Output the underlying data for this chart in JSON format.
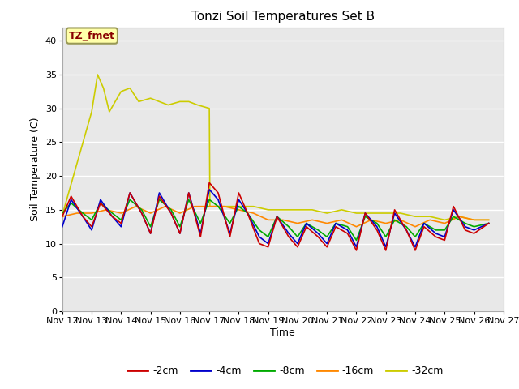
{
  "title": "Tonzi Soil Temperatures Set B",
  "xlabel": "Time",
  "ylabel": "Soil Temperature (C)",
  "ylim": [
    0,
    42
  ],
  "yticks": [
    0,
    5,
    10,
    15,
    20,
    25,
    30,
    35,
    40
  ],
  "xtick_labels": [
    "Nov 12",
    "Nov 13",
    "Nov 14",
    "Nov 15",
    "Nov 16",
    "Nov 17",
    "Nov 18",
    "Nov 19",
    "Nov 20",
    "Nov 21",
    "Nov 22",
    "Nov 23",
    "Nov 24",
    "Nov 25",
    "Nov 26",
    "Nov 27"
  ],
  "legend_labels": [
    "-2cm",
    "-4cm",
    "-8cm",
    "-16cm",
    "-32cm"
  ],
  "legend_colors": [
    "#cc0000",
    "#0000cc",
    "#00aa00",
    "#ff8800",
    "#cccc00"
  ],
  "annotation_text": "TZ_fmet",
  "annotation_bg": "#ffffaa",
  "annotation_border": "#999955",
  "annotation_fg": "#880000",
  "plot_bg_color": "#e8e8e8",
  "fig_bg_color": "#ffffff",
  "grid_color": "#ffffff",
  "series": {
    "d2cm": {
      "color": "#cc0000",
      "points": [
        [
          12.0,
          14.0
        ],
        [
          12.3,
          17.0
        ],
        [
          12.7,
          14.0
        ],
        [
          13.0,
          12.5
        ],
        [
          13.3,
          16.0
        ],
        [
          13.7,
          14.0
        ],
        [
          14.0,
          13.0
        ],
        [
          14.3,
          17.5
        ],
        [
          14.7,
          14.5
        ],
        [
          15.0,
          11.5
        ],
        [
          15.3,
          17.0
        ],
        [
          15.7,
          14.5
        ],
        [
          16.0,
          11.5
        ],
        [
          16.3,
          17.5
        ],
        [
          16.7,
          11.0
        ],
        [
          17.0,
          19.0
        ],
        [
          17.3,
          17.5
        ],
        [
          17.7,
          11.0
        ],
        [
          18.0,
          17.5
        ],
        [
          18.3,
          14.5
        ],
        [
          18.7,
          10.0
        ],
        [
          19.0,
          9.5
        ],
        [
          19.3,
          14.0
        ],
        [
          19.7,
          11.0
        ],
        [
          20.0,
          9.5
        ],
        [
          20.3,
          12.5
        ],
        [
          20.7,
          11.0
        ],
        [
          21.0,
          9.5
        ],
        [
          21.3,
          12.5
        ],
        [
          21.7,
          11.5
        ],
        [
          22.0,
          9.0
        ],
        [
          22.3,
          14.5
        ],
        [
          22.7,
          12.0
        ],
        [
          23.0,
          9.0
        ],
        [
          23.3,
          15.0
        ],
        [
          23.7,
          12.0
        ],
        [
          24.0,
          9.0
        ],
        [
          24.3,
          12.5
        ],
        [
          24.7,
          11.0
        ],
        [
          25.0,
          10.5
        ],
        [
          25.3,
          15.5
        ],
        [
          25.7,
          12.0
        ],
        [
          26.0,
          11.5
        ],
        [
          26.5,
          13.0
        ]
      ]
    },
    "d4cm": {
      "color": "#0000cc",
      "points": [
        [
          12.0,
          12.5
        ],
        [
          12.3,
          16.5
        ],
        [
          12.7,
          14.0
        ],
        [
          13.0,
          12.0
        ],
        [
          13.3,
          16.5
        ],
        [
          13.7,
          14.0
        ],
        [
          14.0,
          12.5
        ],
        [
          14.3,
          17.5
        ],
        [
          14.7,
          14.5
        ],
        [
          15.0,
          11.5
        ],
        [
          15.3,
          17.5
        ],
        [
          15.7,
          14.5
        ],
        [
          16.0,
          11.5
        ],
        [
          16.3,
          17.5
        ],
        [
          16.7,
          11.5
        ],
        [
          17.0,
          18.0
        ],
        [
          17.3,
          16.5
        ],
        [
          17.7,
          11.5
        ],
        [
          18.0,
          16.5
        ],
        [
          18.3,
          14.5
        ],
        [
          18.7,
          11.0
        ],
        [
          19.0,
          10.0
        ],
        [
          19.3,
          14.0
        ],
        [
          19.7,
          11.5
        ],
        [
          20.0,
          10.0
        ],
        [
          20.3,
          13.0
        ],
        [
          20.7,
          11.5
        ],
        [
          21.0,
          10.0
        ],
        [
          21.3,
          13.0
        ],
        [
          21.7,
          12.0
        ],
        [
          22.0,
          9.5
        ],
        [
          22.3,
          14.5
        ],
        [
          22.7,
          12.5
        ],
        [
          23.0,
          9.5
        ],
        [
          23.3,
          14.5
        ],
        [
          23.7,
          12.0
        ],
        [
          24.0,
          9.5
        ],
        [
          24.3,
          13.0
        ],
        [
          24.7,
          11.5
        ],
        [
          25.0,
          11.0
        ],
        [
          25.3,
          15.0
        ],
        [
          25.7,
          12.5
        ],
        [
          26.0,
          12.0
        ],
        [
          26.5,
          13.0
        ]
      ]
    },
    "d8cm": {
      "color": "#00aa00",
      "points": [
        [
          12.0,
          14.5
        ],
        [
          12.3,
          16.0
        ],
        [
          12.7,
          14.5
        ],
        [
          13.0,
          13.5
        ],
        [
          13.3,
          16.0
        ],
        [
          13.7,
          14.5
        ],
        [
          14.0,
          13.5
        ],
        [
          14.3,
          16.5
        ],
        [
          14.7,
          15.0
        ],
        [
          15.0,
          12.5
        ],
        [
          15.3,
          16.5
        ],
        [
          15.7,
          15.0
        ],
        [
          16.0,
          12.5
        ],
        [
          16.3,
          16.5
        ],
        [
          16.7,
          13.0
        ],
        [
          17.0,
          16.5
        ],
        [
          17.3,
          15.5
        ],
        [
          17.7,
          13.0
        ],
        [
          18.0,
          15.5
        ],
        [
          18.3,
          14.5
        ],
        [
          18.7,
          12.0
        ],
        [
          19.0,
          11.0
        ],
        [
          19.3,
          14.0
        ],
        [
          19.7,
          12.5
        ],
        [
          20.0,
          11.0
        ],
        [
          20.3,
          13.0
        ],
        [
          20.7,
          12.0
        ],
        [
          21.0,
          11.0
        ],
        [
          21.3,
          13.0
        ],
        [
          21.7,
          12.5
        ],
        [
          22.0,
          10.5
        ],
        [
          22.3,
          14.0
        ],
        [
          22.7,
          13.0
        ],
        [
          23.0,
          11.0
        ],
        [
          23.3,
          13.5
        ],
        [
          23.7,
          12.5
        ],
        [
          24.0,
          11.0
        ],
        [
          24.3,
          13.0
        ],
        [
          24.7,
          12.0
        ],
        [
          25.0,
          12.0
        ],
        [
          25.3,
          14.0
        ],
        [
          25.7,
          13.0
        ],
        [
          26.0,
          12.5
        ],
        [
          26.5,
          13.0
        ]
      ]
    },
    "d16cm": {
      "color": "#ff8800",
      "points": [
        [
          12.0,
          14.0
        ],
        [
          12.5,
          14.5
        ],
        [
          13.0,
          14.5
        ],
        [
          13.5,
          15.0
        ],
        [
          14.0,
          14.5
        ],
        [
          14.5,
          15.5
        ],
        [
          15.0,
          14.5
        ],
        [
          15.5,
          15.5
        ],
        [
          16.0,
          14.5
        ],
        [
          16.5,
          15.5
        ],
        [
          17.0,
          15.5
        ],
        [
          17.5,
          15.5
        ],
        [
          18.0,
          15.0
        ],
        [
          18.5,
          14.5
        ],
        [
          19.0,
          13.5
        ],
        [
          19.5,
          13.5
        ],
        [
          20.0,
          13.0
        ],
        [
          20.5,
          13.5
        ],
        [
          21.0,
          13.0
        ],
        [
          21.5,
          13.5
        ],
        [
          22.0,
          12.5
        ],
        [
          22.5,
          13.5
        ],
        [
          23.0,
          13.0
        ],
        [
          23.5,
          13.5
        ],
        [
          24.0,
          12.5
        ],
        [
          24.5,
          13.5
        ],
        [
          25.0,
          13.0
        ],
        [
          25.5,
          14.0
        ],
        [
          26.0,
          13.5
        ],
        [
          26.5,
          13.5
        ]
      ]
    },
    "d32cm": {
      "color": "#cccc00",
      "points": [
        [
          12.0,
          14.2
        ],
        [
          13.0,
          29.5
        ],
        [
          13.2,
          35.0
        ],
        [
          13.4,
          33.0
        ],
        [
          13.6,
          29.5
        ],
        [
          14.0,
          32.5
        ],
        [
          14.3,
          33.0
        ],
        [
          14.6,
          31.0
        ],
        [
          15.0,
          31.5
        ],
        [
          15.3,
          31.0
        ],
        [
          15.6,
          30.5
        ],
        [
          16.0,
          31.0
        ],
        [
          16.3,
          31.0
        ],
        [
          16.6,
          30.5
        ],
        [
          17.0,
          30.0
        ],
        [
          17.02,
          15.5
        ],
        [
          17.3,
          15.5
        ],
        [
          17.7,
          15.5
        ],
        [
          18.0,
          15.5
        ],
        [
          18.5,
          15.5
        ],
        [
          19.0,
          15.0
        ],
        [
          19.5,
          15.0
        ],
        [
          20.0,
          15.0
        ],
        [
          20.5,
          15.0
        ],
        [
          21.0,
          14.5
        ],
        [
          21.5,
          15.0
        ],
        [
          22.0,
          14.5
        ],
        [
          22.5,
          14.5
        ],
        [
          23.0,
          14.5
        ],
        [
          23.5,
          14.5
        ],
        [
          24.0,
          14.0
        ],
        [
          24.5,
          14.0
        ],
        [
          25.0,
          13.5
        ],
        [
          25.5,
          14.0
        ],
        [
          26.0,
          13.5
        ],
        [
          26.5,
          13.5
        ]
      ]
    }
  }
}
